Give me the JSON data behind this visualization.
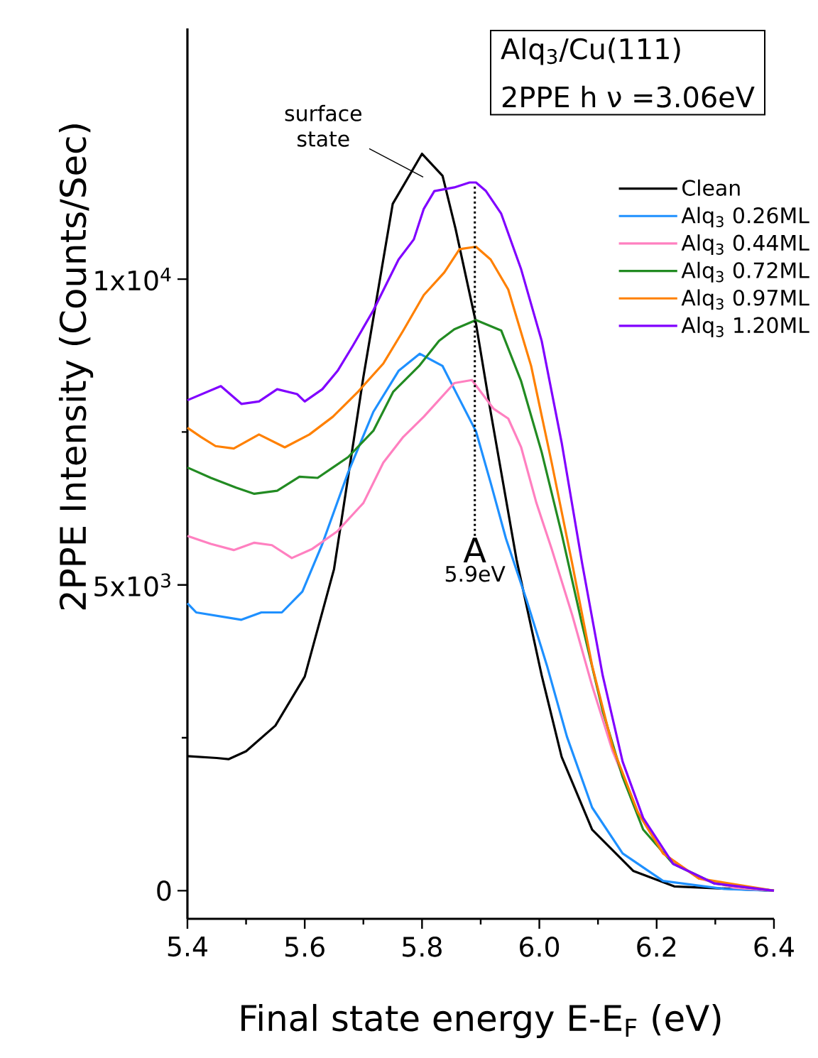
{
  "chart_data": {
    "type": "line",
    "title": "Alq$_{3}$/Cu(111)",
    "subtitle": "2PPE h ν =3.06eV",
    "xlabel": "Final state energy E-E$_{F}$ (eV)",
    "ylabel": "2PPE Intensity (Counts/Sec)",
    "xlim": [
      5.4,
      6.4
    ],
    "ylim": [
      -460,
      14100
    ],
    "xticks": [
      5.4,
      {
        "value": 5.5,
        "label": null
      },
      5.6,
      {
        "value": 5.7,
        "label": null
      },
      5.8,
      {
        "value": 5.9,
        "label": null
      },
      {
        "value": 6,
        "label": "6.0"
      },
      {
        "value": 6.1,
        "label": null
      },
      6.2,
      {
        "value": 6.3,
        "label": null
      },
      6.4
    ],
    "yticks": [
      0,
      {
        "value": 2500,
        "label": null
      },
      {
        "value": 5000,
        "label": "5x10$^{3}$"
      },
      {
        "value": 7500,
        "label": null
      },
      {
        "value": 10000,
        "label": "1x10$^{4}$"
      }
    ],
    "legend": "top right",
    "marker": "none",
    "line_style": "solid",
    "ref_lines": [
      {
        "axis": "x",
        "value": 5.89,
        "label": "A",
        "line_style": "dotted",
        "color": "#000000"
      }
    ],
    "annotations": [
      "surface state",
      "5.9eV"
    ],
    "series": [
      {
        "name": "Clean",
        "color": "#000000",
        "x": [
          5.4,
          5.45,
          5.47,
          5.5,
          5.55,
          5.6,
          5.65,
          5.7,
          5.75,
          5.8,
          5.835,
          5.857,
          5.891,
          5.917,
          5.961,
          6.004,
          6.038,
          6.09,
          6.16,
          6.23,
          6.4
        ],
        "values": [
          2200,
          2170,
          2150,
          2280,
          2700,
          3500,
          5260,
          8400,
          11230,
          12050,
          11690,
          10830,
          9330,
          7830,
          5420,
          3520,
          2190,
          1000,
          325,
          70,
          0
        ]
      },
      {
        "name": "Alq$_{3}$ 0.26ML",
        "color": "#1e90ff",
        "x": [
          5.4,
          5.415,
          5.492,
          5.526,
          5.561,
          5.596,
          5.63,
          5.674,
          5.717,
          5.76,
          5.796,
          5.835,
          5.861,
          5.892,
          5.917,
          5.943,
          5.978,
          6.013,
          6.047,
          6.09,
          6.142,
          6.211,
          6.315,
          6.4
        ],
        "values": [
          4700,
          4550,
          4430,
          4550,
          4550,
          4890,
          5670,
          6840,
          7830,
          8500,
          8780,
          8580,
          8090,
          7510,
          6670,
          5760,
          4760,
          3680,
          2520,
          1360,
          610,
          160,
          30,
          0
        ]
      },
      {
        "name": "Alq$_{3}$ 0.44ML",
        "color": "#ff80c0",
        "x": [
          5.4,
          5.44,
          5.479,
          5.514,
          5.544,
          5.578,
          5.613,
          5.656,
          5.7,
          5.734,
          5.768,
          5.803,
          5.855,
          5.885,
          5.922,
          5.947,
          5.969,
          5.995,
          6.021,
          6.056,
          6.09,
          6.125,
          6.168,
          6.211,
          6.272,
          6.332,
          6.4
        ],
        "values": [
          5800,
          5670,
          5570,
          5690,
          5650,
          5440,
          5590,
          5880,
          6340,
          7000,
          7420,
          7750,
          8300,
          8350,
          7880,
          7720,
          7250,
          6340,
          5590,
          4510,
          3350,
          2280,
          1280,
          610,
          200,
          50,
          0
        ]
      },
      {
        "name": "Alq$_{3}$ 0.72ML",
        "color": "#228b22",
        "x": [
          5.4,
          5.44,
          5.483,
          5.514,
          5.553,
          5.591,
          5.622,
          5.648,
          5.674,
          5.717,
          5.751,
          5.795,
          5.829,
          5.855,
          5.892,
          5.935,
          5.969,
          6.004,
          6.038,
          6.073,
          6.108,
          6.142,
          6.177,
          6.228,
          6.298,
          6.4
        ],
        "values": [
          6920,
          6750,
          6590,
          6490,
          6540,
          6770,
          6750,
          6920,
          7090,
          7520,
          8160,
          8580,
          8990,
          9180,
          9330,
          9160,
          8330,
          7170,
          5840,
          4350,
          2940,
          1860,
          1000,
          440,
          120,
          0
        ]
      },
      {
        "name": "Alq$_{3}$ 0.97ML",
        "color": "#ff8000",
        "x": [
          5.4,
          5.423,
          5.448,
          5.479,
          5.522,
          5.566,
          5.608,
          5.648,
          5.691,
          5.734,
          5.768,
          5.803,
          5.838,
          5.864,
          5.892,
          5.917,
          5.947,
          5.986,
          6.021,
          6.056,
          6.09,
          6.125,
          6.168,
          6.211,
          6.272,
          6.4
        ],
        "values": [
          7570,
          7420,
          7270,
          7230,
          7460,
          7250,
          7460,
          7750,
          8160,
          8620,
          9160,
          9740,
          10110,
          10490,
          10530,
          10320,
          9830,
          8580,
          7000,
          5350,
          3680,
          2350,
          1280,
          610,
          200,
          0
        ]
      },
      {
        "name": "Alq$_{3}$ 1.20ML",
        "color": "#8000ff",
        "x": [
          5.4,
          5.457,
          5.492,
          5.522,
          5.553,
          5.587,
          5.6,
          5.63,
          5.656,
          5.682,
          5.717,
          5.76,
          5.786,
          5.803,
          5.821,
          5.855,
          5.881,
          5.892,
          5.909,
          5.935,
          5.969,
          6.004,
          6.038,
          6.073,
          6.108,
          6.142,
          6.177,
          6.228,
          6.298,
          6.4
        ],
        "values": [
          8020,
          8250,
          7960,
          8000,
          8200,
          8120,
          8000,
          8200,
          8500,
          8910,
          9490,
          10320,
          10650,
          11150,
          11440,
          11500,
          11580,
          11580,
          11440,
          11070,
          10160,
          8990,
          7330,
          5350,
          3520,
          2110,
          1190,
          440,
          120,
          0
        ]
      }
    ]
  }
}
